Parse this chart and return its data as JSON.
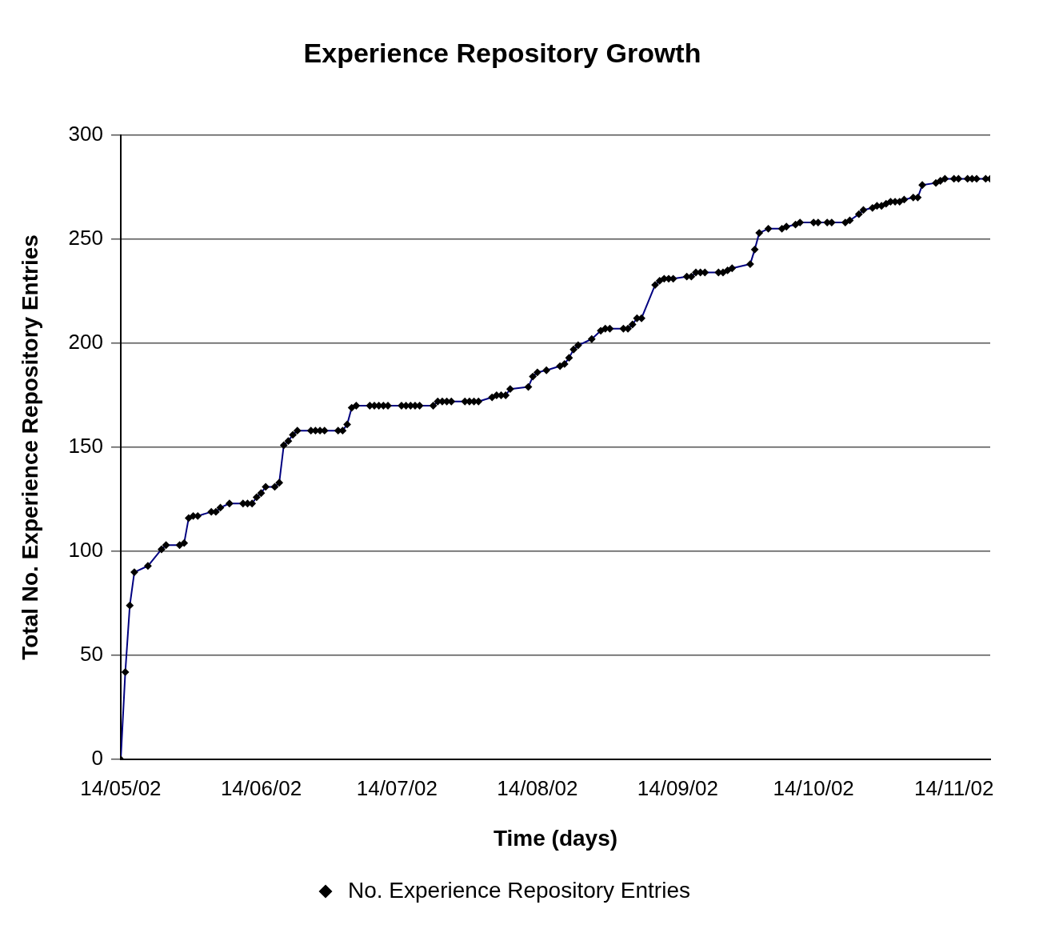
{
  "chart_data": {
    "type": "line",
    "title": "Experience Repository Growth",
    "xlabel": "Time (days)",
    "ylabel": "Total No. Experience Repository Entries",
    "xlim": [
      "2002-05-14",
      "2002-11-22"
    ],
    "xticks": [
      {
        "value": "2002-05-14",
        "label": "14/05/02"
      },
      {
        "value": "2002-06-14",
        "label": "14/06/02"
      },
      {
        "value": "2002-07-14",
        "label": "14/07/02"
      },
      {
        "value": "2002-08-14",
        "label": "14/08/02"
      },
      {
        "value": "2002-09-14",
        "label": "14/09/02"
      },
      {
        "value": "2002-10-14",
        "label": "14/10/02"
      },
      {
        "value": "2002-11-14",
        "label": "14/11/02"
      }
    ],
    "ylim": [
      0,
      300
    ],
    "yticks": [
      0,
      50,
      100,
      150,
      200,
      250,
      300
    ],
    "grid": "y",
    "legend": "bottom",
    "marker": "diamond",
    "line_style": "solid",
    "x": [
      "2002-05-14",
      "2002-05-15",
      "2002-05-16",
      "2002-05-17",
      "2002-05-20",
      "2002-05-23",
      "2002-05-24",
      "2002-05-27",
      "2002-05-28",
      "2002-05-29",
      "2002-05-30",
      "2002-05-31",
      "2002-06-03",
      "2002-06-04",
      "2002-06-05",
      "2002-06-07",
      "2002-06-10",
      "2002-06-11",
      "2002-06-12",
      "2002-06-13",
      "2002-06-14",
      "2002-06-15",
      "2002-06-17",
      "2002-06-18",
      "2002-06-19",
      "2002-06-20",
      "2002-06-21",
      "2002-06-22",
      "2002-06-25",
      "2002-06-26",
      "2002-06-27",
      "2002-06-28",
      "2002-07-01",
      "2002-07-02",
      "2002-07-03",
      "2002-07-04",
      "2002-07-05",
      "2002-07-08",
      "2002-07-09",
      "2002-07-10",
      "2002-07-11",
      "2002-07-12",
      "2002-07-15",
      "2002-07-16",
      "2002-07-17",
      "2002-07-18",
      "2002-07-19",
      "2002-07-22",
      "2002-07-23",
      "2002-07-24",
      "2002-07-25",
      "2002-07-26",
      "2002-07-29",
      "2002-07-30",
      "2002-07-31",
      "2002-08-01",
      "2002-08-04",
      "2002-08-05",
      "2002-08-06",
      "2002-08-07",
      "2002-08-08",
      "2002-08-12",
      "2002-08-13",
      "2002-08-14",
      "2002-08-16",
      "2002-08-19",
      "2002-08-20",
      "2002-08-21",
      "2002-08-22",
      "2002-08-23",
      "2002-08-26",
      "2002-08-28",
      "2002-08-29",
      "2002-08-30",
      "2002-09-02",
      "2002-09-03",
      "2002-09-04",
      "2002-09-05",
      "2002-09-06",
      "2002-09-09",
      "2002-09-10",
      "2002-09-11",
      "2002-09-12",
      "2002-09-13",
      "2002-09-16",
      "2002-09-17",
      "2002-09-18",
      "2002-09-19",
      "2002-09-20",
      "2002-09-23",
      "2002-09-24",
      "2002-09-25",
      "2002-09-26",
      "2002-09-30",
      "2002-10-01",
      "2002-10-02",
      "2002-10-04",
      "2002-10-07",
      "2002-10-08",
      "2002-10-10",
      "2002-10-11",
      "2002-10-14",
      "2002-10-15",
      "2002-10-17",
      "2002-10-18",
      "2002-10-21",
      "2002-10-22",
      "2002-10-24",
      "2002-10-25",
      "2002-10-27",
      "2002-10-28",
      "2002-10-29",
      "2002-10-30",
      "2002-10-31",
      "2002-11-01",
      "2002-11-02",
      "2002-11-03",
      "2002-11-05",
      "2002-11-06",
      "2002-11-07",
      "2002-11-10",
      "2002-11-11",
      "2002-11-12",
      "2002-11-14",
      "2002-11-15",
      "2002-11-17",
      "2002-11-18",
      "2002-11-19",
      "2002-11-21",
      "2002-11-22"
    ],
    "series": [
      {
        "name": "No. Experience Repository Entries",
        "color": "#000080",
        "values": [
          0,
          42,
          74,
          90,
          93,
          101,
          103,
          103,
          104,
          116,
          117,
          117,
          119,
          119,
          121,
          123,
          123,
          123,
          123,
          126,
          128,
          131,
          131,
          133,
          151,
          153,
          156,
          158,
          158,
          158,
          158,
          158,
          158,
          158,
          161,
          169,
          170,
          170,
          170,
          170,
          170,
          170,
          170,
          170,
          170,
          170,
          170,
          170,
          172,
          172,
          172,
          172,
          172,
          172,
          172,
          172,
          174,
          175,
          175,
          175,
          178,
          179,
          184,
          186,
          187,
          189,
          190,
          193,
          197,
          199,
          202,
          206,
          207,
          207,
          207,
          207,
          209,
          212,
          212,
          228,
          230,
          231,
          231,
          231,
          232,
          232,
          234,
          234,
          234,
          234,
          234,
          235,
          236,
          238,
          245,
          253,
          255,
          255,
          256,
          257,
          258,
          258,
          258,
          258,
          258,
          258,
          259,
          262,
          264,
          265,
          266,
          266,
          267,
          268,
          268,
          268,
          269,
          270,
          270,
          276,
          277,
          278,
          279,
          279,
          279,
          279,
          279,
          279,
          279,
          279
        ]
      }
    ]
  }
}
